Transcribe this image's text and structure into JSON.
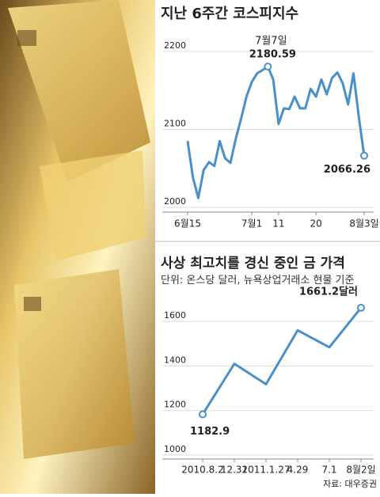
{
  "chart_data": [
    {
      "type": "line",
      "title": "지난 6주간 코스피지수",
      "categories": [
        "6월15",
        null,
        null,
        null,
        null,
        null,
        null,
        null,
        null,
        null,
        null,
        null,
        "7월1",
        null,
        null,
        null,
        null,
        "11",
        null,
        null,
        null,
        null,
        null,
        null,
        "20",
        null,
        null,
        null,
        null,
        null,
        null,
        null,
        null,
        "8월3일"
      ],
      "series": [
        {
          "color": "#4a90c8",
          "values": [
            2085,
            2038,
            2012,
            2048,
            2058,
            2053,
            2085,
            2063,
            2057,
            2088,
            2114,
            2142,
            2161,
            2172,
            2176,
            2180.59,
            2164,
            2107,
            2127,
            2126,
            2142,
            2127,
            2127,
            2152,
            2142,
            2164,
            2145,
            2166,
            2173,
            2159,
            2132,
            2172,
            2116,
            2066.26
          ]
        }
      ],
      "annotation": "7월7일",
      "ylim": [
        2000,
        2200
      ],
      "yticks": [
        2000,
        2100,
        2200
      ],
      "grid": true
    },
    {
      "type": "line",
      "title": "사상 최고치를 경신 중인 금 가격",
      "subtitle": "단위: 온스당 달러, 뉴욕상업거래소 현물 기준",
      "categories": [
        "2010.8.2",
        "12.31",
        "2011.1.27",
        "4.29",
        "7.1",
        "8월2일"
      ],
      "series": [
        {
          "color": "#4a90c8",
          "values": [
            1182.9,
            1410,
            1318,
            1560,
            1484,
            1661.2
          ],
          "value_labels": [
            "1182.9",
            null,
            null,
            null,
            null,
            "1661.2달러"
          ]
        }
      ],
      "ylim": [
        1000,
        1700
      ],
      "yticks": [
        1000,
        1200,
        1400,
        1600
      ],
      "grid": true,
      "source": "자료: 대우증권"
    }
  ]
}
